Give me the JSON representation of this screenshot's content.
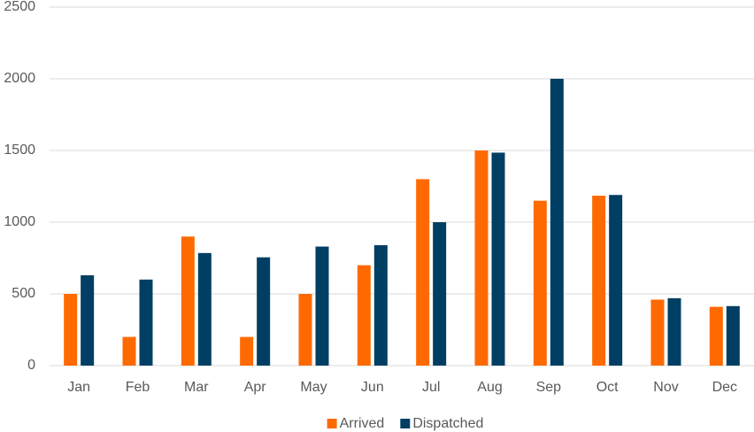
{
  "chart_data": {
    "type": "bar",
    "categories": [
      "Jan",
      "Feb",
      "Mar",
      "Apr",
      "May",
      "Jun",
      "Jul",
      "Aug",
      "Sep",
      "Oct",
      "Nov",
      "Dec"
    ],
    "series": [
      {
        "name": "Arrived",
        "color": "#ff6a00",
        "values": [
          500,
          200,
          900,
          200,
          500,
          700,
          1300,
          1500,
          1150,
          1185,
          460,
          410
        ]
      },
      {
        "name": "Dispatched",
        "color": "#003f63",
        "values": [
          630,
          600,
          785,
          755,
          830,
          840,
          1000,
          1485,
          2000,
          1190,
          470,
          415
        ]
      }
    ],
    "ylim": [
      0,
      2500
    ],
    "yticks": [
      0,
      500,
      1000,
      1500,
      2000,
      2500
    ],
    "grid": true,
    "legend": "bottom"
  }
}
